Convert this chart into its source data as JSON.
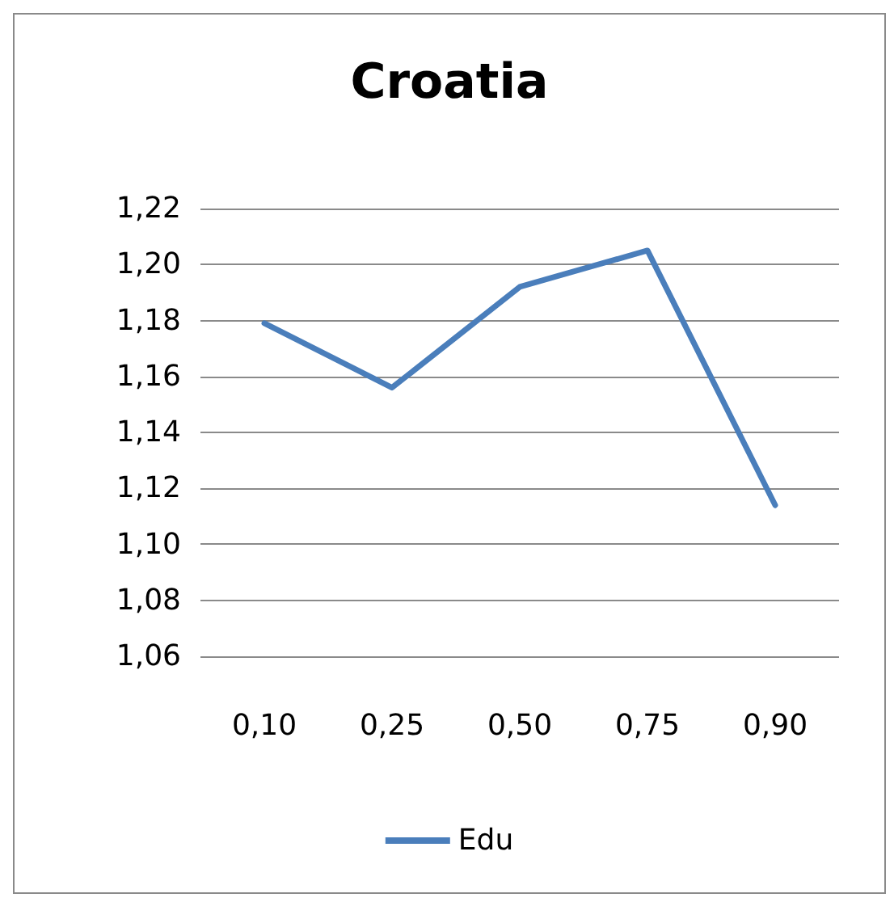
{
  "chart_data": {
    "type": "line",
    "title": "Croatia",
    "categories": [
      "0,10",
      "0,25",
      "0,50",
      "0,75",
      "0,90"
    ],
    "series": [
      {
        "name": "Edu",
        "color": "#4a7ebb",
        "values": [
          1.179,
          1.156,
          1.192,
          1.205,
          1.114
        ]
      }
    ],
    "ylim": [
      1.06,
      1.22
    ],
    "yticks": [
      {
        "value": 1.06,
        "label": "1,06"
      },
      {
        "value": 1.08,
        "label": "1,08"
      },
      {
        "value": 1.1,
        "label": "1,10"
      },
      {
        "value": 1.12,
        "label": "1,12"
      },
      {
        "value": 1.14,
        "label": "1,14"
      },
      {
        "value": 1.16,
        "label": "1,16"
      },
      {
        "value": 1.18,
        "label": "1,18"
      },
      {
        "value": 1.2,
        "label": "1,20"
      },
      {
        "value": 1.22,
        "label": "1,22"
      }
    ],
    "grid": "y",
    "legend": "bottom",
    "marker": "none",
    "line_style": "solid"
  }
}
